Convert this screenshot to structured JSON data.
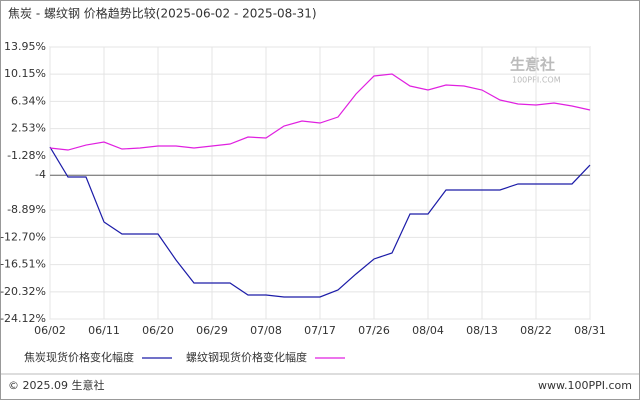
{
  "chart_data": {
    "type": "line",
    "title": "焦炭 - 螺纹钢 价格趋势比较(2025-06-02 - 2025-08-31)",
    "watermark": "生意社",
    "watermark_sub": "100PPI.COM",
    "footer_left": "© 2025.09 生意社",
    "footer_right": "www.100PPI.com",
    "categories": [
      "06/02",
      null,
      null,
      "06/11",
      null,
      null,
      "06/20",
      null,
      null,
      "06/29",
      null,
      null,
      "07/08",
      null,
      null,
      "07/17",
      null,
      null,
      "07/26",
      null,
      null,
      "08/04",
      null,
      null,
      "08/13",
      null,
      null,
      "08/22",
      null,
      null,
      "08/31"
    ],
    "series": [
      {
        "name": "焦炭现货价格变化幅度",
        "color": "#1c1ca8",
        "values": [
          -0.05,
          -4.25,
          -4.25,
          -10.54,
          -12.22,
          -12.22,
          -12.22,
          -15.86,
          -19.08,
          -19.08,
          -19.08,
          -20.76,
          -20.76,
          -21.04,
          -21.04,
          -21.04,
          -20.06,
          -17.82,
          -15.72,
          -14.88,
          -9.42,
          -9.42,
          -6.06,
          -6.06,
          -6.06,
          -6.06,
          -5.22,
          -5.22,
          -5.22,
          -5.22,
          -2.57
        ]
      },
      {
        "name": "螺纹钢现货价格变化幅度",
        "color": "#e020e0",
        "values": [
          -0.19,
          -0.47,
          0.23,
          0.65,
          -0.33,
          -0.19,
          0.09,
          0.09,
          -0.19,
          0.09,
          0.37,
          1.35,
          1.21,
          2.89,
          3.59,
          3.31,
          4.15,
          7.37,
          9.89,
          10.17,
          8.49,
          7.93,
          8.63,
          8.49,
          7.93,
          6.53,
          5.97,
          5.83,
          6.11,
          5.69,
          5.13
        ]
      }
    ],
    "ylim": [
      -24.12,
      13.95
    ],
    "yticks": [
      {
        "value": 13.95,
        "label": "13.95%"
      },
      {
        "value": 10.15,
        "label": "10.15%"
      },
      {
        "value": 6.34,
        "label": "6.34%"
      },
      {
        "value": 2.53,
        "label": "2.53%"
      },
      {
        "value": -1.28,
        "label": "-1.28%"
      },
      -4,
      {
        "value": -8.89,
        "label": "-8.89%"
      },
      {
        "value": -12.7,
        "label": "-12.70%"
      },
      {
        "value": -16.51,
        "label": "-16.51%"
      },
      {
        "value": -20.32,
        "label": "-20.32%"
      },
      {
        "value": -24.12,
        "label": "-24.12%"
      }
    ],
    "reference_line": -4,
    "reference_color": "#666666",
    "grid": true
  }
}
